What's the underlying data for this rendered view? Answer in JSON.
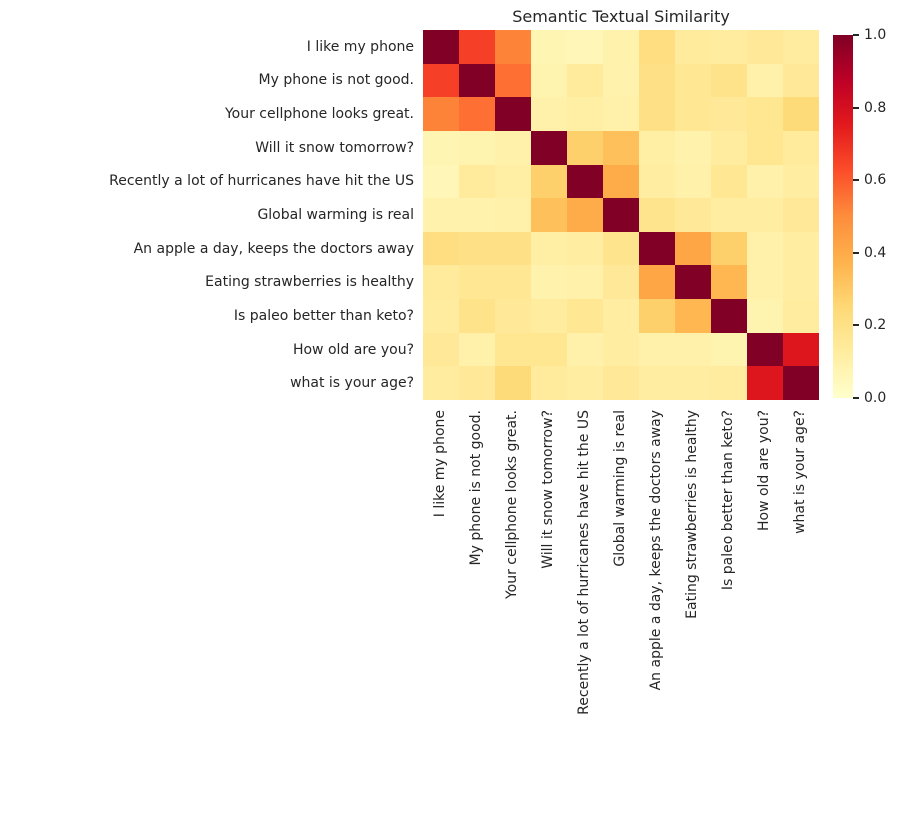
{
  "background": "#ffffff",
  "text_color": "#262626",
  "chart_data": {
    "type": "heatmap",
    "title": "Semantic Textual Similarity",
    "grid": false,
    "legend_position": "right",
    "labels": [
      "I like my phone",
      "My phone is not good.",
      "Your cellphone looks great.",
      "Will it snow tomorrow?",
      "Recently a lot of hurricanes have hit the US",
      "Global warming is real",
      "An apple a day, keeps the doctors away",
      "Eating strawberries is healthy",
      "Is paleo better than keto?",
      "How old are you?",
      "what is your age?"
    ],
    "matrix": [
      [
        1.0,
        0.66,
        0.52,
        0.07,
        0.06,
        0.09,
        0.22,
        0.14,
        0.13,
        0.15,
        0.13
      ],
      [
        0.66,
        1.0,
        0.56,
        0.08,
        0.14,
        0.09,
        0.2,
        0.16,
        0.19,
        0.1,
        0.15
      ],
      [
        0.52,
        0.56,
        1.0,
        0.1,
        0.11,
        0.1,
        0.2,
        0.16,
        0.15,
        0.17,
        0.24
      ],
      [
        0.07,
        0.08,
        0.1,
        1.0,
        0.28,
        0.33,
        0.11,
        0.09,
        0.13,
        0.17,
        0.14
      ],
      [
        0.06,
        0.14,
        0.11,
        0.28,
        1.0,
        0.4,
        0.12,
        0.1,
        0.16,
        0.1,
        0.12
      ],
      [
        0.09,
        0.09,
        0.1,
        0.33,
        0.4,
        1.0,
        0.18,
        0.15,
        0.12,
        0.12,
        0.15
      ],
      [
        0.22,
        0.2,
        0.2,
        0.11,
        0.12,
        0.18,
        1.0,
        0.42,
        0.28,
        0.1,
        0.12
      ],
      [
        0.14,
        0.16,
        0.16,
        0.09,
        0.1,
        0.15,
        0.42,
        1.0,
        0.36,
        0.1,
        0.12
      ],
      [
        0.13,
        0.19,
        0.15,
        0.13,
        0.16,
        0.12,
        0.28,
        0.36,
        1.0,
        0.08,
        0.13
      ],
      [
        0.15,
        0.1,
        0.17,
        0.17,
        0.1,
        0.12,
        0.1,
        0.1,
        0.08,
        1.0,
        0.77
      ],
      [
        0.13,
        0.15,
        0.24,
        0.14,
        0.12,
        0.15,
        0.12,
        0.12,
        0.13,
        0.77,
        1.0
      ]
    ],
    "colormap": {
      "name": "YlOrRd",
      "stops": [
        {
          "t": 0.0,
          "color": "#ffffcc"
        },
        {
          "t": 0.125,
          "color": "#ffeda0"
        },
        {
          "t": 0.25,
          "color": "#fed976"
        },
        {
          "t": 0.375,
          "color": "#feb24c"
        },
        {
          "t": 0.5,
          "color": "#fd8d3c"
        },
        {
          "t": 0.625,
          "color": "#fc4e2a"
        },
        {
          "t": 0.75,
          "color": "#e31a1c"
        },
        {
          "t": 0.875,
          "color": "#bd0026"
        },
        {
          "t": 1.0,
          "color": "#800026"
        }
      ]
    },
    "colorbar": {
      "min": 0.0,
      "max": 1.0,
      "ticks": [
        {
          "value": 1.0,
          "label": "1.0"
        },
        {
          "value": 0.8,
          "label": "0.8"
        },
        {
          "value": 0.6,
          "label": "0.6"
        },
        {
          "value": 0.4,
          "label": "0.4"
        },
        {
          "value": 0.2,
          "label": "0.2"
        },
        {
          "value": 0.0,
          "label": "0.0"
        }
      ]
    }
  }
}
